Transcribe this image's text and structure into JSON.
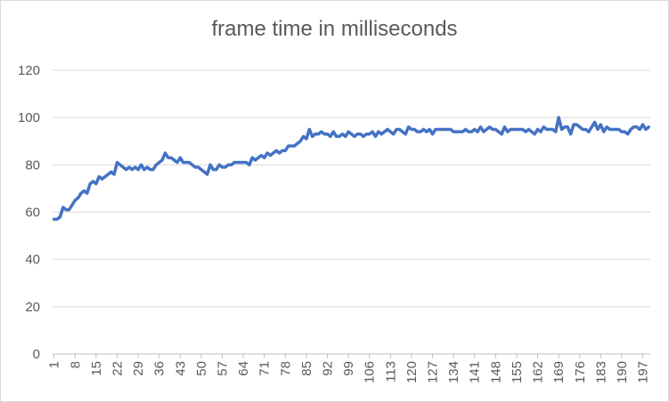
{
  "chart_data": {
    "type": "line",
    "title": "frame time in milliseconds",
    "xlabel": "",
    "ylabel": "",
    "ylim": [
      0,
      120
    ],
    "y_ticks": [
      0,
      20,
      40,
      60,
      80,
      100,
      120
    ],
    "x_range": [
      1,
      199
    ],
    "x_tick_labels": [
      "1",
      "8",
      "15",
      "22",
      "29",
      "36",
      "43",
      "50",
      "57",
      "64",
      "71",
      "78",
      "85",
      "92",
      "99",
      "106",
      "113",
      "120",
      "127",
      "134",
      "141",
      "148",
      "155",
      "162",
      "169",
      "176",
      "183",
      "190",
      "197"
    ],
    "grid": true,
    "legend": "none",
    "line_color": "#4472c4",
    "grid_color": "#d9d9d9",
    "series": [
      {
        "values": [
          57,
          57,
          58,
          62,
          61,
          61,
          63,
          65,
          66,
          68,
          69,
          68,
          72,
          73,
          72,
          75,
          74,
          75,
          76,
          77,
          76,
          81,
          80,
          79,
          78,
          79,
          78,
          79,
          78,
          80,
          78,
          79,
          78,
          78,
          80,
          81,
          82,
          85,
          83,
          83,
          82,
          81,
          83,
          81,
          81,
          81,
          80,
          79,
          79,
          78,
          77,
          76,
          80,
          78,
          78,
          80,
          79,
          79,
          80,
          80,
          81,
          81,
          81,
          81,
          81,
          80,
          83,
          82,
          83,
          84,
          83,
          85,
          84,
          85,
          86,
          85,
          86,
          86,
          88,
          88,
          88,
          89,
          90,
          92,
          91,
          95,
          92,
          93,
          93,
          94,
          93,
          93,
          92,
          94,
          92,
          92,
          93,
          92,
          94,
          93,
          92,
          93,
          93,
          92,
          93,
          93,
          94,
          92,
          94,
          93,
          94,
          95,
          94,
          93,
          95,
          95,
          94,
          93,
          96,
          95,
          95,
          94,
          94,
          95,
          94,
          95,
          93,
          95,
          95,
          95,
          95,
          95,
          95,
          94,
          94,
          94,
          94,
          95,
          94,
          94,
          95,
          94,
          96,
          94,
          95,
          96,
          95,
          95,
          94,
          93,
          96,
          94,
          95,
          95,
          95,
          95,
          95,
          94,
          95,
          94,
          93,
          95,
          94,
          96,
          95,
          95,
          95,
          94,
          100,
          95,
          96,
          96,
          93,
          97,
          97,
          96,
          95,
          95,
          94,
          96,
          98,
          95,
          97,
          94,
          96,
          95,
          95,
          95,
          95,
          94,
          94,
          93,
          95,
          96,
          96,
          95,
          97,
          95,
          96
        ]
      }
    ]
  }
}
